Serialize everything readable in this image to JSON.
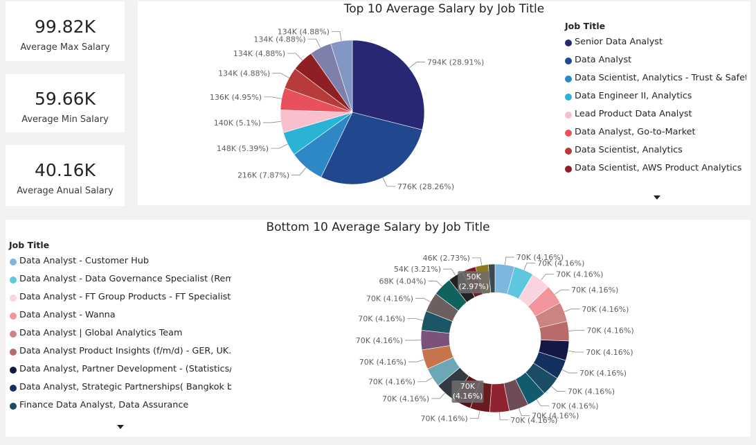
{
  "kpis": [
    {
      "value": "99.82K",
      "label": "Average Max Salary"
    },
    {
      "value": "59.66K",
      "label": "Average Min Salary"
    },
    {
      "value": "40.16K",
      "label": "Average Anual Salary"
    }
  ],
  "top_chart": {
    "legend_title": "Job Title",
    "legend_items": [
      "Senior Data Analyst",
      "Data Analyst",
      "Data Scientist, Analytics - Trust & Safety",
      "Data Engineer II, Analytics",
      "Lead Product Data Analyst",
      "Data Analyst, Go-to-Market",
      "Data Scientist, Analytics",
      "Data Scientist, AWS Product Analytics"
    ]
  },
  "bottom_chart": {
    "legend_title": "Job Title",
    "legend_items": [
      "Data Analyst - Customer Hub",
      "Data Analyst - Data Governance Specialist (Rem...",
      "Data Analyst - FT Group Products - FT Specialist...",
      "Data Analyst - Wanna",
      "Data Analyst | Global Analytics Team",
      "Data Analyst Product Insights (f/m/d) - GER, UK...",
      "Data Analyst, Partner Development - (Statistics/...",
      "Data Analyst, Strategic Partnerships( Bangkok b...",
      "Finance Data Analyst, Data Assurance"
    ]
  },
  "chart_data": [
    {
      "type": "pie",
      "title": "Top 10 Average Salary by Job Title",
      "legend_title": "Job Title",
      "legend_position": "right",
      "slices": [
        {
          "category": "Senior Data Analyst",
          "value": 794,
          "label": "794K (28.91%)",
          "color": "#272773"
        },
        {
          "category": "Data Analyst",
          "value": 776,
          "label": "776K (28.26%)",
          "color": "#21488f"
        },
        {
          "category": "Data Scientist, Analytics - Trust & Safety",
          "value": 216,
          "label": "216K (7.87%)",
          "color": "#2e88c6"
        },
        {
          "category": "Data Engineer II, Analytics",
          "value": 148,
          "label": "148K (5.39%)",
          "color": "#2bb3d5"
        },
        {
          "category": "Lead Product Data Analyst",
          "value": 140,
          "label": "140K (5.1%)",
          "color": "#f8bfcc"
        },
        {
          "category": "Data Analyst, Go-to-Market",
          "value": 136,
          "label": "136K (4.95%)",
          "color": "#e8515c"
        },
        {
          "category": "Data Scientist, Analytics",
          "value": 134,
          "label": "134K (4.88%)",
          "color": "#b73b3b"
        },
        {
          "category": "Data Scientist, AWS Product Analytics",
          "value": 134,
          "label": "134K (4.88%)",
          "color": "#8e1f24"
        },
        {
          "category": "",
          "value": 134,
          "label": "134K (4.88%)",
          "color": "#7f7fab"
        },
        {
          "category": "",
          "value": 134,
          "label": "134K (4.88%)",
          "color": "#8297c3"
        }
      ]
    },
    {
      "type": "pie",
      "title": "Bottom 10 Average Salary by Job Title",
      "legend_title": "Job Title",
      "legend_position": "left",
      "donut": true,
      "slices": [
        {
          "category": "Data Analyst - Customer Hub",
          "value": 70,
          "label": "70K (4.16%)",
          "color": "#7eb6dd"
        },
        {
          "category": "Data Analyst - Data Governance Specialist (Rem...",
          "value": 70,
          "label": "70K (4.16%)",
          "color": "#5cc7df"
        },
        {
          "category": "Data Analyst - FT Group Products - FT Specialist...",
          "value": 70,
          "label": "70K (4.16%)",
          "color": "#fad3df"
        },
        {
          "category": "Data Analyst - Wanna",
          "value": 70,
          "label": "70K (4.16%)",
          "color": "#f0959c"
        },
        {
          "category": "Data Analyst | Global Analytics Team",
          "value": 70,
          "label": "70K (4.16%)",
          "color": "#cc8383"
        },
        {
          "category": "Data Analyst Product Insights (f/m/d) - GER, UK...",
          "value": 70,
          "label": "70K (4.16%)",
          "color": "#b96a6a"
        },
        {
          "category": "Data Analyst, Partner Development - (Statistics/...",
          "value": 70,
          "label": "70K (4.16%)",
          "color": "#141845"
        },
        {
          "category": "Data Analyst, Strategic Partnerships( Bangkok b...",
          "value": 70,
          "label": "70K (4.16%)",
          "color": "#13305e"
        },
        {
          "category": "Finance Data Analyst, Data Assurance",
          "value": 70,
          "label": "70K (4.16%)",
          "color": "#1a4c66"
        },
        {
          "category": "",
          "value": 70,
          "label": "70K (4.16%)",
          "color": "#125a6e"
        },
        {
          "category": "",
          "value": 70,
          "label": "70K (4.16%)",
          "color": "#6d4c55"
        },
        {
          "category": "",
          "value": 70,
          "label": "70K (4.16%)",
          "color": "#8f2430"
        },
        {
          "category": "",
          "value": 70,
          "label": "70K (4.16%)",
          "color": "#6b1a20"
        },
        {
          "category": "",
          "value": 70,
          "label": "70K\n(4.16%)",
          "color": "#5a1216"
        },
        {
          "category": "",
          "value": 70,
          "label": "70K (4.16%)",
          "color": "#333a41"
        },
        {
          "category": "",
          "value": 70,
          "label": "70K (4.16%)",
          "color": "#6ba7b4"
        },
        {
          "category": "",
          "value": 70,
          "label": "70K (4.16%)",
          "color": "#c6744c"
        },
        {
          "category": "",
          "value": 70,
          "label": "70K (4.16%)",
          "color": "#7a527a"
        },
        {
          "category": "",
          "value": 70,
          "label": "70K (4.16%)",
          "color": "#1c5563"
        },
        {
          "category": "",
          "value": 70,
          "label": "70K (4.16%)",
          "color": "#6b5f5f"
        },
        {
          "category": "",
          "value": 68,
          "label": "68K (4.04%)",
          "color": "#10625c"
        },
        {
          "category": "",
          "value": 54,
          "label": "54K (3.21%)",
          "color": "#222222"
        },
        {
          "category": "",
          "value": 50,
          "label": "50K\n(2.97%)",
          "color": "#7a1a24"
        },
        {
          "category": "",
          "value": 46,
          "label": "46K (2.73%)",
          "color": "#8c7a1a"
        },
        {
          "category": "",
          "value": 24,
          "label": "",
          "color": "#3a4a55"
        }
      ]
    }
  ]
}
